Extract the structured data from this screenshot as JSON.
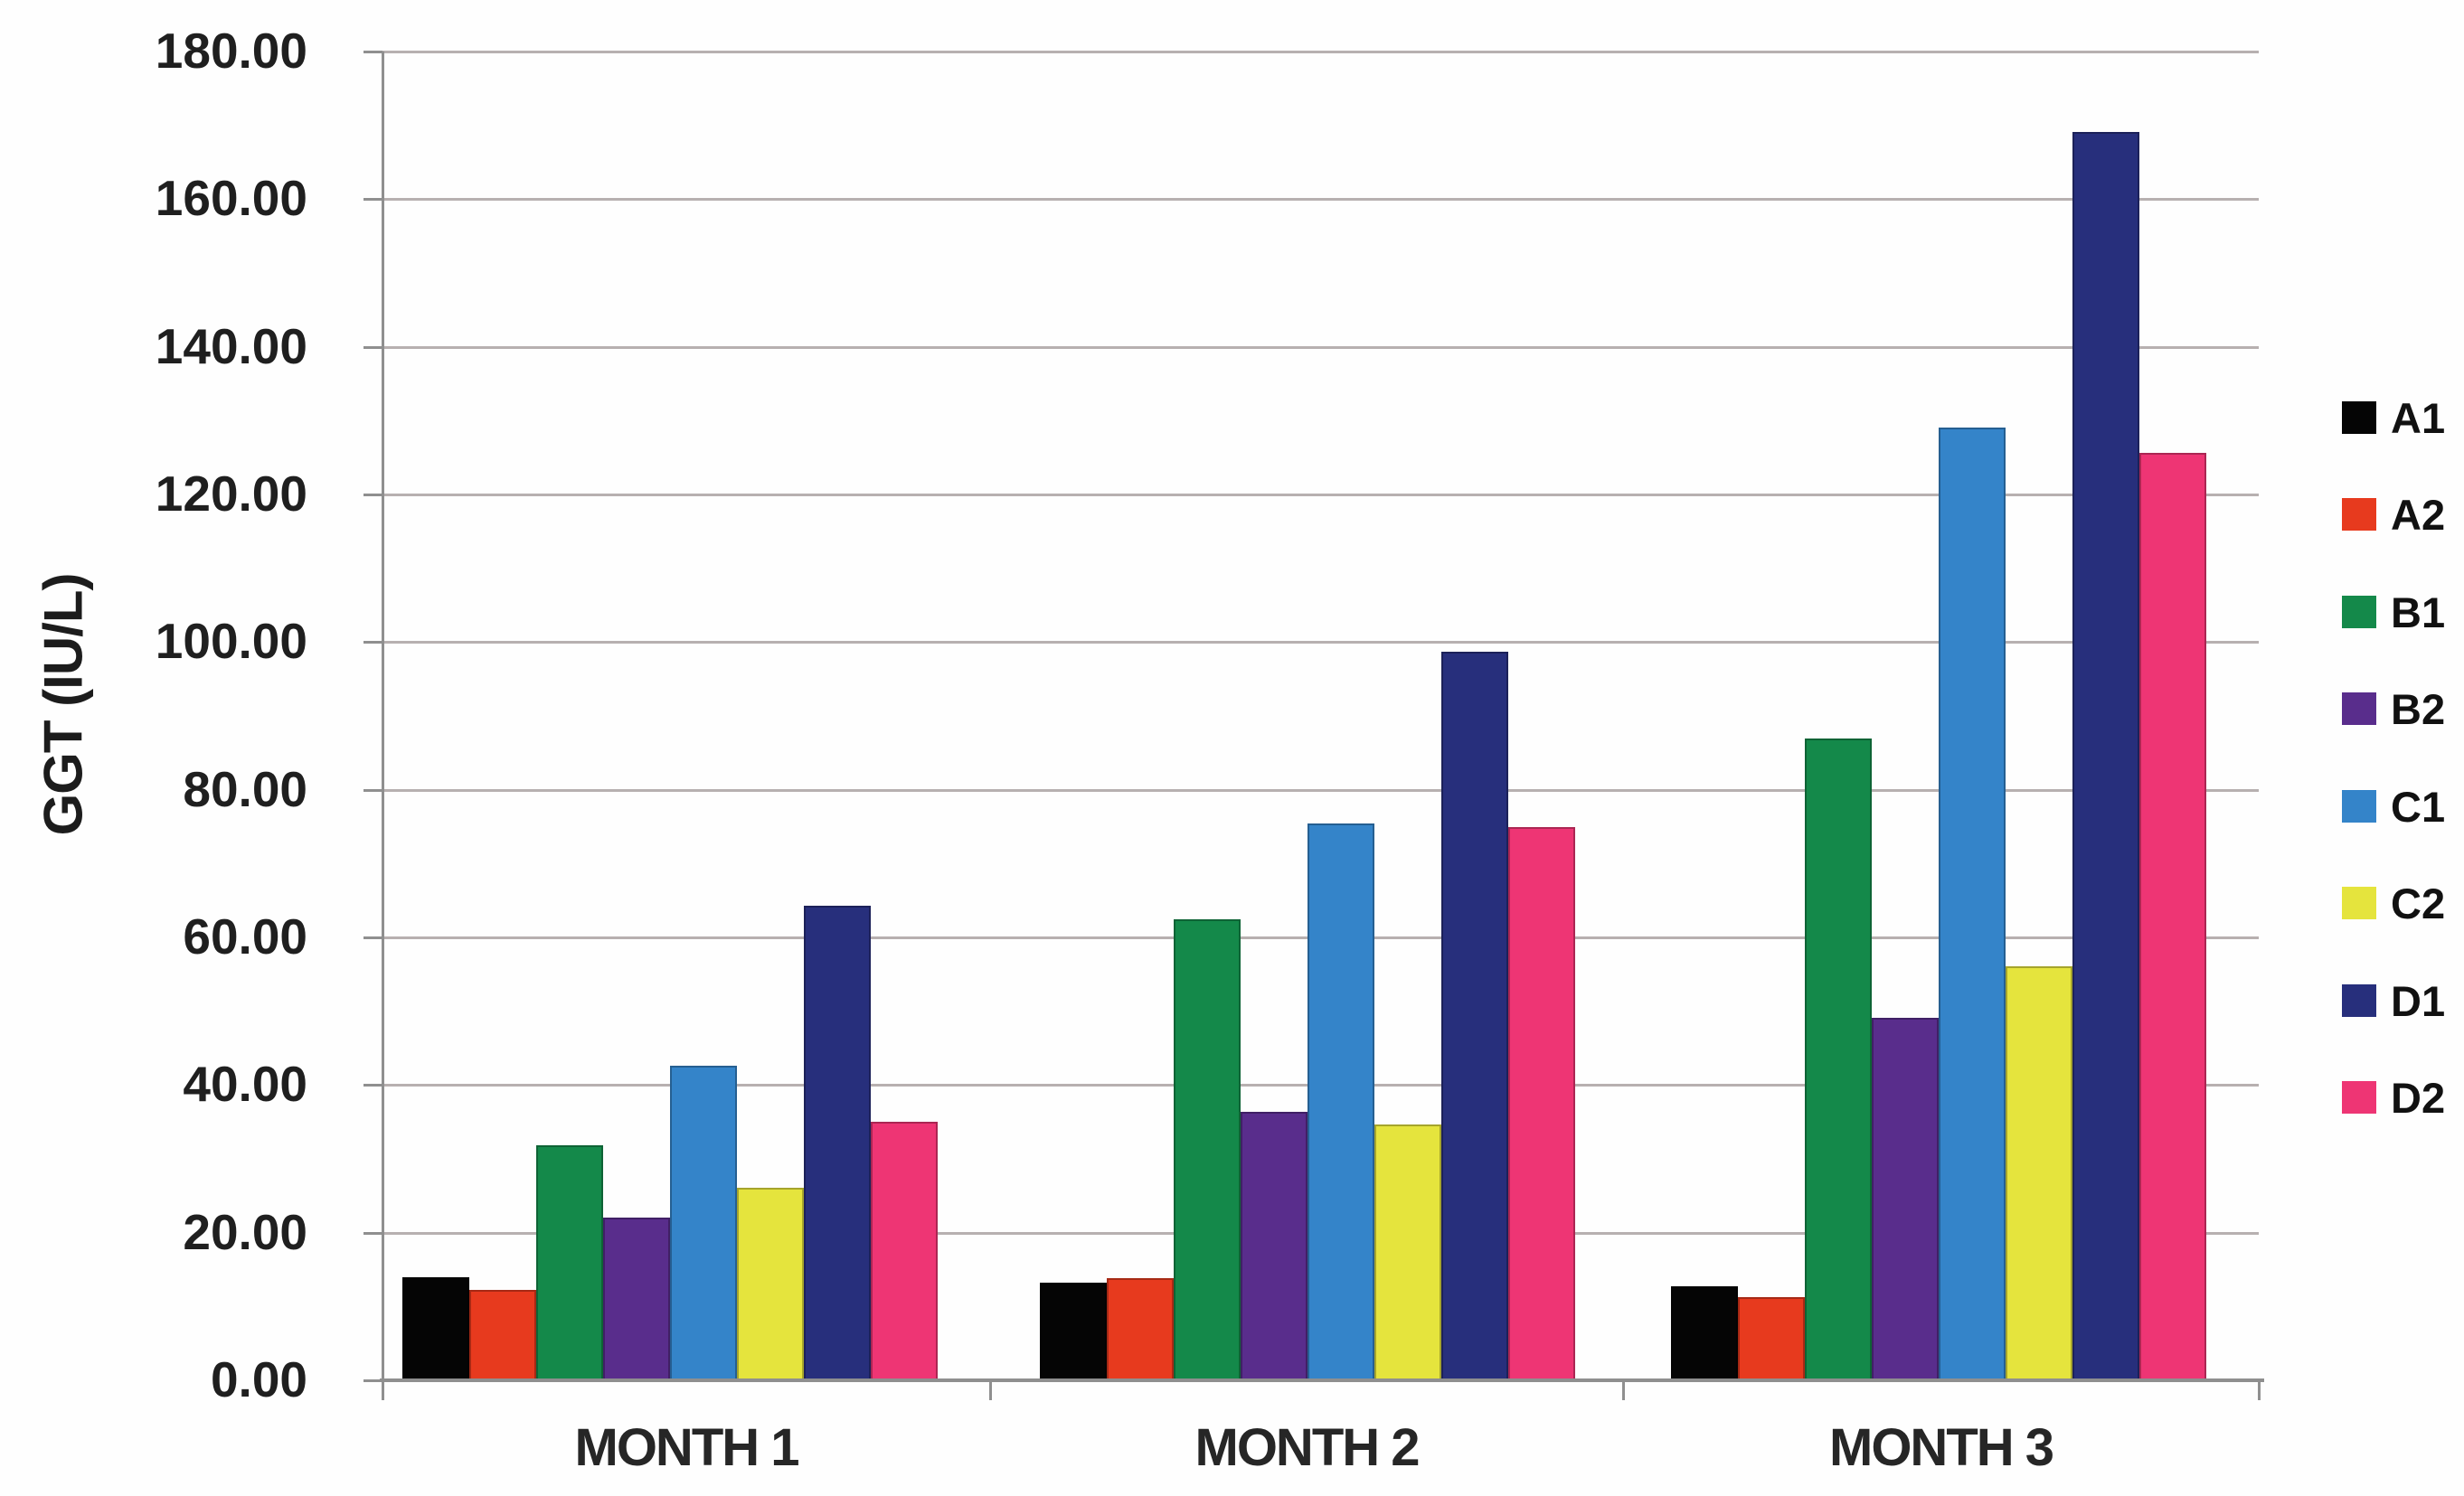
{
  "chart_data": {
    "type": "bar",
    "title": "",
    "ylabel": "GGT (IU/L)",
    "xlabel": "",
    "categories": [
      "MONTH 1",
      "MONTH 2",
      "MONTH 3"
    ],
    "series": [
      {
        "name": "A1",
        "color": "#050505",
        "values": [
          13.9,
          13.2,
          12.7
        ]
      },
      {
        "name": "A2",
        "color": "#e73a1e",
        "values": [
          12.2,
          13.8,
          11.3
        ]
      },
      {
        "name": "B1",
        "color": "#14894a",
        "values": [
          31.8,
          62.4,
          86.9
        ]
      },
      {
        "name": "B2",
        "color": "#592d8c",
        "values": [
          22.0,
          36.4,
          49.1
        ]
      },
      {
        "name": "C1",
        "color": "#3484c9",
        "values": [
          42.6,
          75.4,
          129.1
        ]
      },
      {
        "name": "C2",
        "color": "#e5e43d",
        "values": [
          26.1,
          34.7,
          56.1
        ]
      },
      {
        "name": "D1",
        "color": "#272f7c",
        "values": [
          64.3,
          98.7,
          169.1
        ]
      },
      {
        "name": "D2",
        "color": "#ee3574",
        "values": [
          35.0,
          75.0,
          125.6
        ]
      }
    ],
    "ylim": [
      0,
      180
    ],
    "ytick_step": 20,
    "ytick_labels": [
      "0.00",
      "20.00",
      "40.00",
      "60.00",
      "80.00",
      "100.00",
      "120.00",
      "140.00",
      "160.00",
      "180.00"
    ],
    "grid": true,
    "legend_position": "right"
  },
  "colors": {
    "background": "#fefefe",
    "gridline": "#b7b0b0",
    "axis": "#8f8f8f",
    "text": "#1f1f1f"
  }
}
